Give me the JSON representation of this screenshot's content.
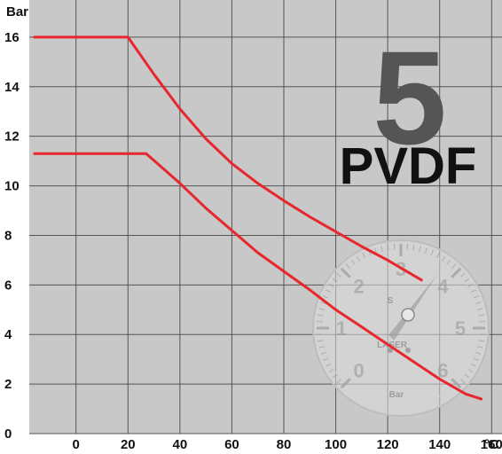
{
  "chart_data": {
    "type": "line",
    "x_unit": "°C",
    "y_unit": "Bar",
    "xlim": [
      -18,
      164
    ],
    "ylim": [
      0,
      17.5
    ],
    "x_ticks": [
      0,
      20,
      40,
      60,
      80,
      100,
      120,
      140,
      160
    ],
    "y_ticks": [
      0,
      2,
      4,
      6,
      8,
      10,
      12,
      14,
      16
    ],
    "grid": true,
    "series": [
      {
        "color": "#e8262d",
        "points": [
          [
            -16,
            16.0
          ],
          [
            20,
            16.0
          ],
          [
            30,
            14.5
          ],
          [
            40,
            13.1
          ],
          [
            50,
            11.9
          ],
          [
            60,
            10.9
          ],
          [
            70,
            10.1
          ],
          [
            80,
            9.4
          ],
          [
            90,
            8.75
          ],
          [
            100,
            8.15
          ],
          [
            110,
            7.55
          ],
          [
            120,
            7.0
          ],
          [
            133,
            6.2
          ]
        ]
      },
      {
        "color": "#e8262d",
        "points": [
          [
            -16,
            11.3
          ],
          [
            27,
            11.3
          ],
          [
            40,
            10.1
          ],
          [
            50,
            9.1
          ],
          [
            60,
            8.2
          ],
          [
            70,
            7.3
          ],
          [
            80,
            6.55
          ],
          [
            90,
            5.8
          ],
          [
            100,
            5.0
          ],
          [
            110,
            4.3
          ],
          [
            120,
            3.6
          ],
          [
            130,
            2.9
          ],
          [
            140,
            2.2
          ],
          [
            150,
            1.6
          ],
          [
            156,
            1.4
          ]
        ]
      }
    ]
  },
  "overlay": {
    "digit": "5",
    "material": "PVDF",
    "gauge": {
      "numbers": [
        "0",
        "1",
        "2",
        "3",
        "4",
        "5",
        "6"
      ],
      "unit": "Bar",
      "letter": "S",
      "brand": "LASER"
    }
  },
  "colors": {
    "plot_background": "#c8c8c8",
    "grid": "#555555",
    "line": "#e8262d"
  }
}
